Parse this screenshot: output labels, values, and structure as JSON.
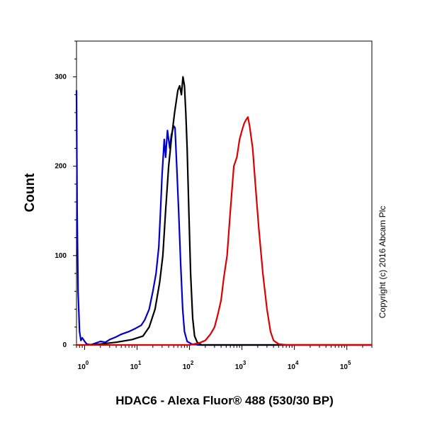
{
  "chart_data": {
    "type": "line",
    "xlabel": "HDAC6 - Alexa Fluor® 488 (530/30 BP)",
    "ylabel": "Count",
    "copyright": "Copyright (c) 2016 Abcam Plc",
    "x_scale": "log",
    "xlim": [
      0.7,
      300000
    ],
    "ylim": [
      0,
      340
    ],
    "x_ticks": [
      {
        "value": 1,
        "base": "10",
        "exp": "0"
      },
      {
        "value": 10,
        "base": "10",
        "exp": "1"
      },
      {
        "value": 100,
        "base": "10",
        "exp": "2"
      },
      {
        "value": 1000,
        "base": "10",
        "exp": "3"
      },
      {
        "value": 10000,
        "base": "10",
        "exp": "4"
      },
      {
        "value": 100000,
        "base": "10",
        "exp": "5"
      }
    ],
    "y_ticks": [
      0,
      100,
      200,
      300
    ],
    "grid": false,
    "series": [
      {
        "color": "#0000cc",
        "points": [
          [
            0.7,
            285
          ],
          [
            0.72,
            150
          ],
          [
            0.75,
            60
          ],
          [
            0.8,
            15
          ],
          [
            0.85,
            5
          ],
          [
            0.9,
            8
          ],
          [
            1.0,
            4
          ],
          [
            1.1,
            1
          ],
          [
            1.3,
            0
          ],
          [
            1.6,
            2
          ],
          [
            2,
            4
          ],
          [
            2.5,
            3
          ],
          [
            3,
            6
          ],
          [
            4,
            9
          ],
          [
            5,
            12
          ],
          [
            7,
            15
          ],
          [
            9,
            18
          ],
          [
            12,
            22
          ],
          [
            14,
            28
          ],
          [
            17,
            40
          ],
          [
            20,
            60
          ],
          [
            23,
            80
          ],
          [
            26,
            110
          ],
          [
            28,
            150
          ],
          [
            30,
            190
          ],
          [
            33,
            230
          ],
          [
            35,
            210
          ],
          [
            38,
            240
          ],
          [
            42,
            220
          ],
          [
            45,
            235
          ],
          [
            50,
            245
          ],
          [
            53,
            243
          ],
          [
            57,
            200
          ],
          [
            62,
            150
          ],
          [
            68,
            90
          ],
          [
            74,
            40
          ],
          [
            80,
            15
          ],
          [
            90,
            4
          ],
          [
            110,
            1
          ],
          [
            150,
            0
          ],
          [
            300000,
            0
          ]
        ]
      },
      {
        "color": "#000000",
        "points": [
          [
            1,
            0
          ],
          [
            2,
            1
          ],
          [
            4,
            3
          ],
          [
            8,
            6
          ],
          [
            13,
            10
          ],
          [
            17,
            20
          ],
          [
            22,
            40
          ],
          [
            27,
            70
          ],
          [
            31,
            100
          ],
          [
            35,
            150
          ],
          [
            40,
            200
          ],
          [
            45,
            230
          ],
          [
            52,
            260
          ],
          [
            60,
            285
          ],
          [
            65,
            290
          ],
          [
            70,
            280
          ],
          [
            75,
            300
          ],
          [
            80,
            290
          ],
          [
            85,
            260
          ],
          [
            90,
            220
          ],
          [
            97,
            150
          ],
          [
            105,
            80
          ],
          [
            115,
            30
          ],
          [
            125,
            10
          ],
          [
            140,
            3
          ],
          [
            170,
            0
          ],
          [
            300000,
            0
          ]
        ]
      },
      {
        "color": "#dd0000",
        "points": [
          [
            0.7,
            0
          ],
          [
            100,
            0
          ],
          [
            150,
            2
          ],
          [
            200,
            5
          ],
          [
            250,
            12
          ],
          [
            300,
            20
          ],
          [
            350,
            35
          ],
          [
            400,
            50
          ],
          [
            450,
            75
          ],
          [
            520,
            100
          ],
          [
            600,
            150
          ],
          [
            700,
            200
          ],
          [
            800,
            210
          ],
          [
            900,
            230
          ],
          [
            1000,
            240
          ],
          [
            1100,
            248
          ],
          [
            1200,
            252
          ],
          [
            1300,
            255
          ],
          [
            1400,
            245
          ],
          [
            1600,
            220
          ],
          [
            1800,
            180
          ],
          [
            2100,
            130
          ],
          [
            2500,
            80
          ],
          [
            3000,
            40
          ],
          [
            3500,
            15
          ],
          [
            4000,
            5
          ],
          [
            5000,
            1
          ],
          [
            7000,
            0
          ],
          [
            300000,
            0
          ]
        ]
      }
    ]
  }
}
